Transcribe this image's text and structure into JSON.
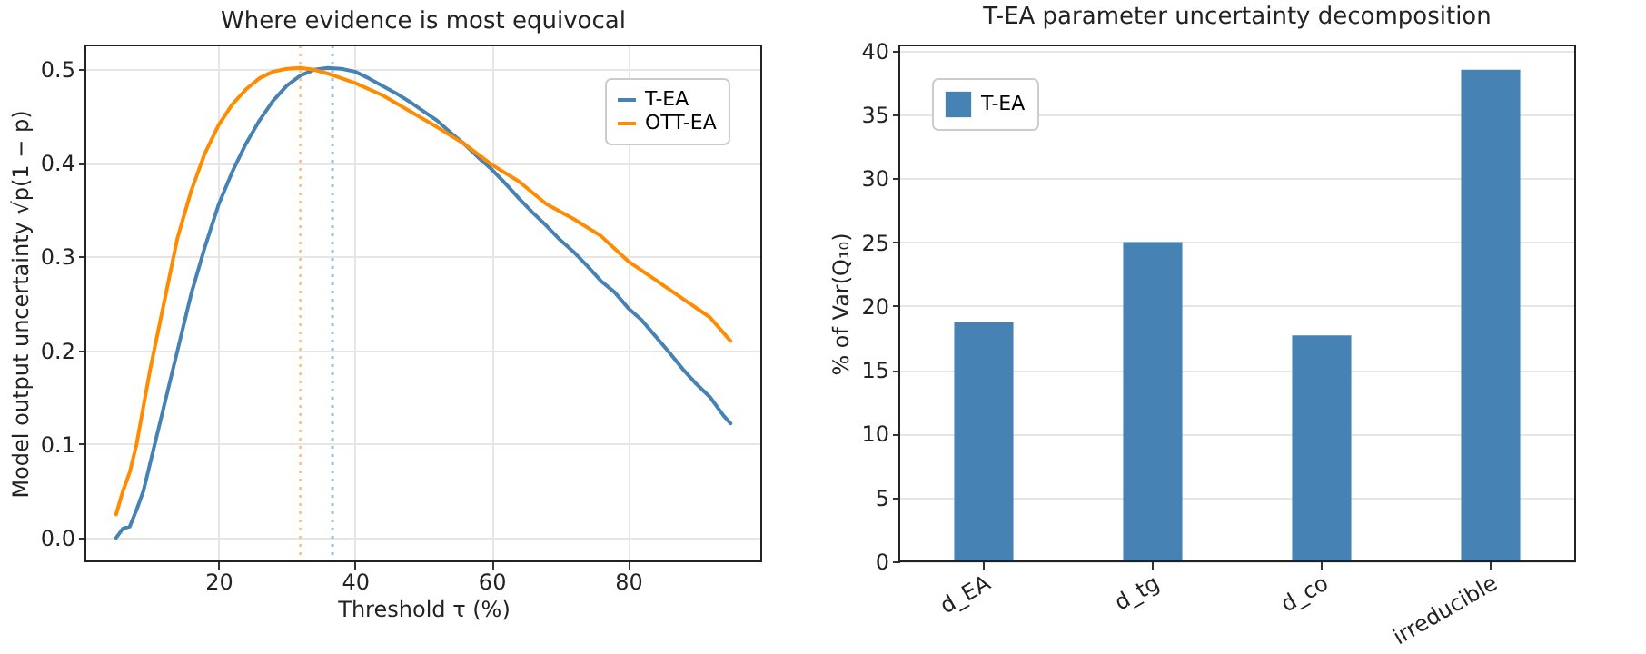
{
  "chart_data": [
    {
      "type": "line",
      "title": "Where evidence is most equivocal",
      "xlabel": "Threshold τ (%)",
      "ylabel": "Model output uncertainty √p(1 − p)",
      "xlim": [
        0.5,
        99.5
      ],
      "ylim": [
        -0.025,
        0.525
      ],
      "xticks": [
        20,
        40,
        60,
        80
      ],
      "yticks": [
        {
          "value": 0,
          "label": "0.0"
        },
        0.1,
        0.2,
        0.3,
        0.4,
        0.5
      ],
      "grid": true,
      "legend": "top right",
      "line_style": "solid",
      "marker": "none",
      "series": [
        {
          "name": "T-EA",
          "color": "#4682b4",
          "x": [
            5,
            6,
            7,
            8,
            9,
            10,
            11,
            12,
            14,
            16,
            18,
            20,
            22,
            24,
            26,
            28,
            30,
            32,
            34,
            36,
            38,
            40,
            42,
            44,
            46,
            48,
            50,
            52,
            54,
            56,
            58,
            60,
            62,
            64,
            66,
            68,
            70,
            72,
            74,
            76,
            78,
            80,
            82,
            84,
            86,
            88,
            90,
            92,
            94,
            95
          ],
          "values": [
            0,
            0.01,
            0.012,
            0.03,
            0.05,
            0.08,
            0.11,
            0.14,
            0.2,
            0.26,
            0.31,
            0.355,
            0.39,
            0.42,
            0.445,
            0.466,
            0.482,
            0.493,
            0.499,
            0.501,
            0.5,
            0.497,
            0.49,
            0.482,
            0.474,
            0.465,
            0.455,
            0.445,
            0.432,
            0.42,
            0.406,
            0.393,
            0.378,
            0.362,
            0.347,
            0.333,
            0.318,
            0.305,
            0.29,
            0.274,
            0.262,
            0.245,
            0.232,
            0.215,
            0.198,
            0.18,
            0.164,
            0.15,
            0.13,
            0.122
          ]
        },
        {
          "name": "OTT-EA",
          "color": "#ff8c00",
          "x": [
            5,
            6,
            7,
            8,
            9,
            10,
            12,
            14,
            16,
            18,
            20,
            22,
            24,
            26,
            28,
            30,
            32,
            34,
            36,
            38,
            40,
            44,
            48,
            52,
            56,
            60,
            64,
            68,
            72,
            76,
            80,
            84,
            88,
            92,
            95
          ],
          "values": [
            0.025,
            0.05,
            0.07,
            0.1,
            0.14,
            0.18,
            0.25,
            0.32,
            0.37,
            0.41,
            0.44,
            0.462,
            0.478,
            0.49,
            0.497,
            0.5,
            0.501,
            0.499,
            0.495,
            0.49,
            0.485,
            0.472,
            0.455,
            0.438,
            0.42,
            0.398,
            0.38,
            0.356,
            0.34,
            0.322,
            0.295,
            0.275,
            0.255,
            0.235,
            0.21
          ]
        }
      ],
      "ref_lines": [
        {
          "axis": "x",
          "value": 32,
          "color": "#ffc285",
          "line_style": "dotted"
        },
        {
          "axis": "x",
          "value": 36.7,
          "color": "#9bbfdc",
          "line_style": "dotted"
        }
      ]
    },
    {
      "type": "bar",
      "title": "T-EA parameter uncertainty decomposition",
      "ylabel": "% of Var(Q₁₀)",
      "categories": [
        "d_EA",
        "d_tg",
        "d_co",
        "irreducible"
      ],
      "ylim": [
        0,
        40.4
      ],
      "yticks": [
        0,
        5,
        10,
        15,
        20,
        25,
        30,
        35,
        40
      ],
      "grid": "y",
      "legend": "top left",
      "series": [
        {
          "name": "T-EA",
          "color": "#4682b4",
          "values": [
            18.7,
            25.0,
            17.7,
            38.5
          ]
        }
      ]
    }
  ]
}
